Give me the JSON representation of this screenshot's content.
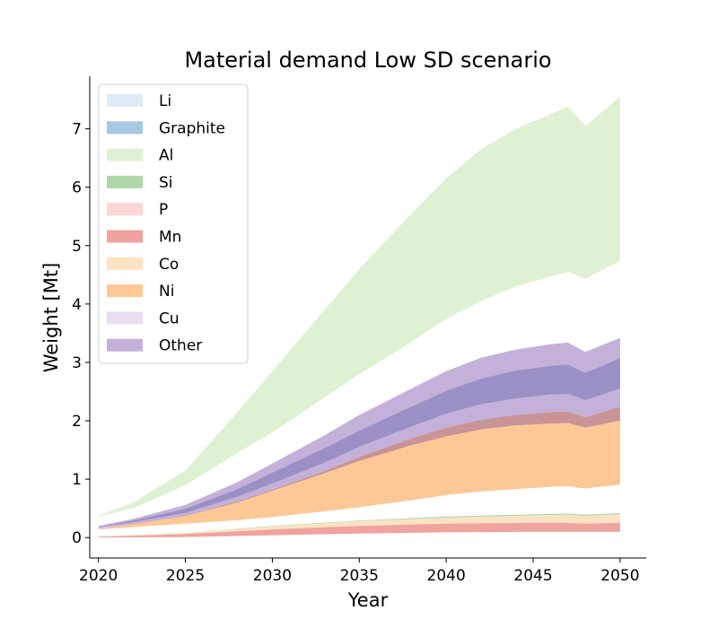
{
  "chart_data": {
    "type": "area",
    "title": "Material demand Low SD scenario",
    "xlabel": "Year",
    "ylabel": "Weight [Mt]",
    "xlim": [
      2019.5,
      2051.5
    ],
    "ylim": [
      -0.35,
      7.9
    ],
    "x_ticks": [
      2020,
      2025,
      2030,
      2035,
      2040,
      2045,
      2050
    ],
    "y_ticks": [
      0,
      1,
      2,
      3,
      4,
      5,
      6,
      7
    ],
    "grid": false,
    "legend_position": "top-left",
    "legend": [
      {
        "name": "Li",
        "color": "#deebf7"
      },
      {
        "name": "Graphite",
        "color": "#a6c8e2"
      },
      {
        "name": "Al",
        "color": "#dff1d3"
      },
      {
        "name": "Si",
        "color": "#aed8a8"
      },
      {
        "name": "P",
        "color": "#fdd5d5"
      },
      {
        "name": "Mn",
        "color": "#f0a39f"
      },
      {
        "name": "Co",
        "color": "#fde3c4"
      },
      {
        "name": "Ni",
        "color": "#fdc895"
      },
      {
        "name": "Cu",
        "color": "#e8def0"
      },
      {
        "name": "Other",
        "color": "#c4b1d9"
      }
    ],
    "bands": [
      {
        "name": "Al (upper)",
        "color": "#dff1d3",
        "points": [
          [
            2020,
            0.38,
            0.36
          ],
          [
            2022,
            0.6,
            0.5
          ],
          [
            2025,
            1.15,
            0.9
          ],
          [
            2028,
            2.15,
            1.45
          ],
          [
            2030,
            2.85,
            1.8
          ],
          [
            2033,
            3.9,
            2.4
          ],
          [
            2035,
            4.6,
            2.8
          ],
          [
            2038,
            5.55,
            3.35
          ],
          [
            2040,
            6.15,
            3.75
          ],
          [
            2042,
            6.65,
            4.05
          ],
          [
            2044,
            7.0,
            4.3
          ],
          [
            2046,
            7.25,
            4.47
          ],
          [
            2047,
            7.38,
            4.55
          ],
          [
            2048,
            7.05,
            4.43
          ],
          [
            2050,
            7.55,
            4.74
          ]
        ]
      },
      {
        "name": "Other (upper)",
        "color": "#c4b1d9",
        "points": [
          [
            2020,
            0.2,
            0.18
          ],
          [
            2022,
            0.32,
            0.28
          ],
          [
            2025,
            0.56,
            0.48
          ],
          [
            2028,
            0.95,
            0.82
          ],
          [
            2030,
            1.27,
            1.1
          ],
          [
            2033,
            1.75,
            1.52
          ],
          [
            2035,
            2.1,
            1.82
          ],
          [
            2038,
            2.55,
            2.23
          ],
          [
            2040,
            2.85,
            2.5
          ],
          [
            2042,
            3.08,
            2.7
          ],
          [
            2044,
            3.22,
            2.84
          ],
          [
            2046,
            3.31,
            2.92
          ],
          [
            2047,
            3.34,
            2.95
          ],
          [
            2048,
            3.18,
            2.8
          ],
          [
            2050,
            3.42,
            3.05
          ]
        ]
      },
      {
        "name": "Graphite (upper)",
        "color": "#9b90c6",
        "points": [
          [
            2020,
            0.18,
            0.17
          ],
          [
            2022,
            0.29,
            0.26
          ],
          [
            2025,
            0.49,
            0.42
          ],
          [
            2028,
            0.83,
            0.7
          ],
          [
            2030,
            1.11,
            0.92
          ],
          [
            2033,
            1.53,
            1.28
          ],
          [
            2035,
            1.83,
            1.55
          ],
          [
            2038,
            2.24,
            1.9
          ],
          [
            2040,
            2.51,
            2.12
          ],
          [
            2042,
            2.72,
            2.28
          ],
          [
            2044,
            2.86,
            2.38
          ],
          [
            2046,
            2.94,
            2.45
          ],
          [
            2047,
            2.96,
            2.46
          ],
          [
            2048,
            2.82,
            2.35
          ],
          [
            2050,
            3.07,
            2.55
          ]
        ]
      },
      {
        "name": "Cu (upper)",
        "color": "#c4b1d9",
        "points": [
          [
            2020,
            0.16,
            0.15
          ],
          [
            2022,
            0.26,
            0.24
          ],
          [
            2025,
            0.42,
            0.38
          ],
          [
            2028,
            0.7,
            0.62
          ],
          [
            2030,
            0.92,
            0.82
          ],
          [
            2033,
            1.28,
            1.14
          ],
          [
            2035,
            1.55,
            1.38
          ],
          [
            2038,
            1.9,
            1.7
          ],
          [
            2040,
            2.12,
            1.88
          ],
          [
            2042,
            2.28,
            2.02
          ],
          [
            2044,
            2.38,
            2.1
          ],
          [
            2046,
            2.45,
            2.15
          ],
          [
            2047,
            2.46,
            2.16
          ],
          [
            2048,
            2.35,
            2.06
          ],
          [
            2050,
            2.55,
            2.24
          ]
        ]
      },
      {
        "name": "Mn (upper)",
        "color": "#c89497",
        "points": [
          [
            2020,
            0.15,
            0.15
          ],
          [
            2022,
            0.24,
            0.23
          ],
          [
            2025,
            0.38,
            0.37
          ],
          [
            2028,
            0.62,
            0.6
          ],
          [
            2030,
            0.82,
            0.8
          ],
          [
            2033,
            1.14,
            1.1
          ],
          [
            2035,
            1.38,
            1.31
          ],
          [
            2038,
            1.7,
            1.58
          ],
          [
            2040,
            1.88,
            1.73
          ],
          [
            2042,
            2.02,
            1.85
          ],
          [
            2044,
            2.1,
            1.92
          ],
          [
            2046,
            2.15,
            1.95
          ],
          [
            2047,
            2.16,
            1.96
          ],
          [
            2048,
            2.06,
            1.88
          ],
          [
            2050,
            2.24,
            2.0
          ]
        ]
      },
      {
        "name": "Ni (upper)",
        "color": "#fdc895",
        "points": [
          [
            2020,
            0.15,
            0.14
          ],
          [
            2022,
            0.23,
            0.18
          ],
          [
            2025,
            0.37,
            0.24
          ],
          [
            2028,
            0.6,
            0.3
          ],
          [
            2030,
            0.8,
            0.35
          ],
          [
            2033,
            1.1,
            0.45
          ],
          [
            2035,
            1.31,
            0.52
          ],
          [
            2038,
            1.58,
            0.64
          ],
          [
            2040,
            1.73,
            0.73
          ],
          [
            2042,
            1.85,
            0.79
          ],
          [
            2044,
            1.92,
            0.83
          ],
          [
            2046,
            1.95,
            0.87
          ],
          [
            2047,
            1.96,
            0.88
          ],
          [
            2048,
            1.88,
            0.84
          ],
          [
            2050,
            2.0,
            0.91
          ]
        ]
      },
      {
        "name": "Si",
        "color": "#aed8a8",
        "points": [
          [
            2020,
            0.02,
            0.015
          ],
          [
            2025,
            0.08,
            0.075
          ],
          [
            2030,
            0.2,
            0.19
          ],
          [
            2035,
            0.29,
            0.28
          ],
          [
            2040,
            0.36,
            0.34
          ],
          [
            2045,
            0.4,
            0.38
          ],
          [
            2047,
            0.41,
            0.39
          ],
          [
            2048,
            0.39,
            0.37
          ],
          [
            2050,
            0.42,
            0.4
          ]
        ]
      },
      {
        "name": "Co",
        "color": "#fde3c4",
        "points": [
          [
            2020,
            0.015,
            0.012
          ],
          [
            2025,
            0.075,
            0.06
          ],
          [
            2030,
            0.19,
            0.14
          ],
          [
            2035,
            0.28,
            0.2
          ],
          [
            2040,
            0.34,
            0.24
          ],
          [
            2045,
            0.38,
            0.25
          ],
          [
            2047,
            0.39,
            0.25
          ],
          [
            2048,
            0.37,
            0.24
          ],
          [
            2050,
            0.4,
            0.25
          ]
        ]
      },
      {
        "name": "Mn",
        "color": "#f0a39f",
        "points": [
          [
            2020,
            0.012,
            0.0
          ],
          [
            2025,
            0.06,
            0.01
          ],
          [
            2030,
            0.14,
            0.04
          ],
          [
            2035,
            0.2,
            0.07
          ],
          [
            2040,
            0.24,
            0.09
          ],
          [
            2045,
            0.25,
            0.1
          ],
          [
            2047,
            0.25,
            0.1
          ],
          [
            2048,
            0.24,
            0.1
          ],
          [
            2050,
            0.25,
            0.1
          ]
        ]
      }
    ]
  }
}
